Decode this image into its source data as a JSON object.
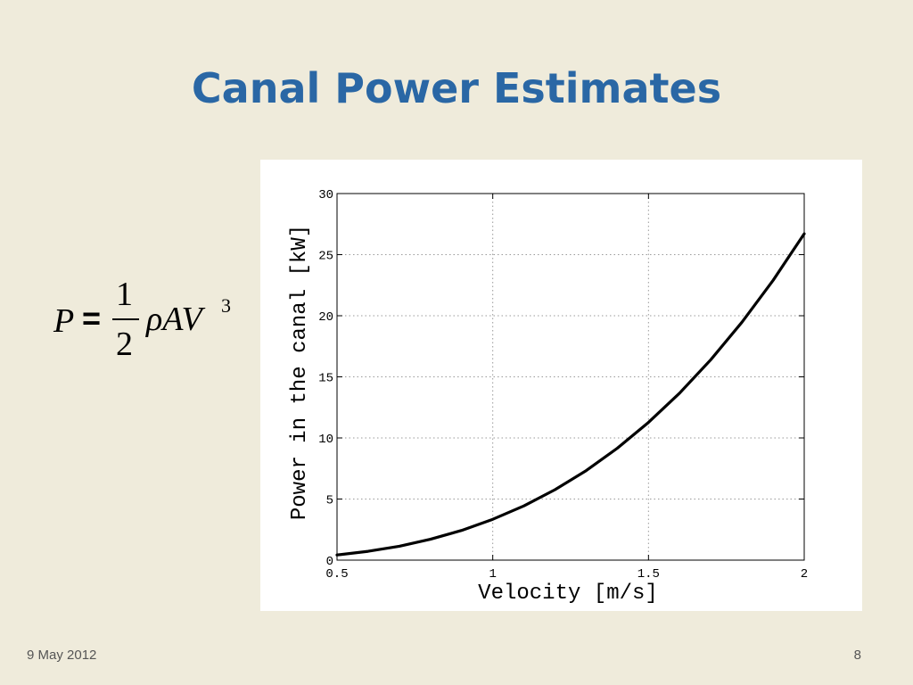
{
  "slide": {
    "title": "Canal Power Estimates",
    "date": "9 May 2012",
    "page_number": "8"
  },
  "formula": {
    "lhs": "P",
    "equals": "=",
    "numerator": "1",
    "denominator": "2",
    "rest": "ρAV",
    "exponent": "3"
  },
  "chart_data": {
    "type": "line",
    "xlabel": "Velocity [m/s]",
    "ylabel": "Power in the canal [kW]",
    "xlim": [
      0.5,
      2
    ],
    "ylim": [
      0,
      30
    ],
    "xticks": [
      0.5,
      1,
      1.5,
      2
    ],
    "xtick_labels": [
      "0.5",
      "1",
      "1.5",
      "2"
    ],
    "yticks": [
      0,
      5,
      10,
      15,
      20,
      25,
      30
    ],
    "ytick_labels": [
      "0",
      "5",
      "10",
      "15",
      "20",
      "25",
      "30"
    ],
    "grid": true,
    "line_color": "#000000",
    "series": [
      {
        "x": [
          0.5,
          0.6,
          0.7,
          0.8,
          0.9,
          1.0,
          1.1,
          1.2,
          1.3,
          1.4,
          1.5,
          1.6,
          1.7,
          1.8,
          1.9,
          2.0
        ],
        "y": [
          0.42,
          0.72,
          1.14,
          1.71,
          2.43,
          3.34,
          4.44,
          5.77,
          7.33,
          9.16,
          11.27,
          13.67,
          16.4,
          19.47,
          22.9,
          26.71
        ]
      }
    ]
  }
}
